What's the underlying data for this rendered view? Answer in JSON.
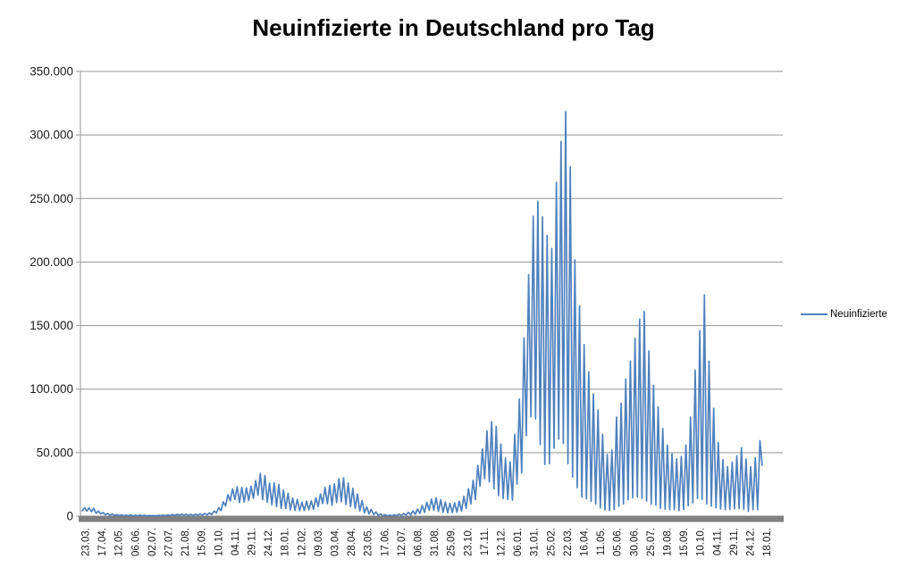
{
  "title": "Neuinfizierte in Deutschland pro Tag",
  "legend": {
    "label": "Neuinfizierte",
    "color": "#4F81BD"
  },
  "chart_data": {
    "type": "line",
    "title": "Neuinfizierte in Deutschland pro Tag",
    "series_name": "Neuinfizierte",
    "xlabel": "",
    "ylabel": "",
    "ylim": [
      0,
      350000
    ],
    "grid": "horizontal",
    "legend_position": "right",
    "colors": {
      "line": "#4F81BD",
      "gridline": "#959595",
      "axis_bar": "#808080",
      "tick_text": "#1a1a1a"
    },
    "y_ticks": [
      {
        "value": 0,
        "label": "0"
      },
      {
        "value": 50000,
        "label": "50.000"
      },
      {
        "value": 100000,
        "label": "100.000"
      },
      {
        "value": 150000,
        "label": "150.000"
      },
      {
        "value": 200000,
        "label": "200.000"
      },
      {
        "value": 250000,
        "label": "250.000"
      },
      {
        "value": 300000,
        "label": "300.000"
      },
      {
        "value": 350000,
        "label": "350.000"
      }
    ],
    "x_tick_labels": [
      "23.03.",
      "17.04.",
      "12.05.",
      "06.06.",
      "02.07.",
      "27.07.",
      "21.08.",
      "15.09.",
      "10.10.",
      "04.11.",
      "29.11.",
      "24.12.",
      "18.01.",
      "12.02.",
      "09.03.",
      "03.04.",
      "28.04.",
      "23.05.",
      "17.06.",
      "12.07.",
      "06.08.",
      "31.08.",
      "25.09.",
      "23.10.",
      "17.11.",
      "12.12.",
      "06.01.",
      "31.01.",
      "25.02.",
      "22.03.",
      "16.04.",
      "11.05.",
      "05.06.",
      "30.06.",
      "25.07.",
      "19.08.",
      "15.09.",
      "10.10.",
      "04.11.",
      "29.11.",
      "24.12.",
      "18.01."
    ],
    "x_start_date": "23.03.2020",
    "x_end_date": "18.01.2023",
    "sampling": "two points per week (weekly reporting low, weekly reporting high), daily new-infection series approximated",
    "weekly_low_high": [
      [
        4200,
        6700
      ],
      [
        4000,
        6500
      ],
      [
        3500,
        6200
      ],
      [
        2200,
        4100
      ],
      [
        1700,
        2900
      ],
      [
        1100,
        2100
      ],
      [
        700,
        1600
      ],
      [
        500,
        1200
      ],
      [
        400,
        1000
      ],
      [
        350,
        800
      ],
      [
        300,
        900
      ],
      [
        250,
        700
      ],
      [
        300,
        800
      ],
      [
        300,
        700
      ],
      [
        250,
        550
      ],
      [
        250,
        500
      ],
      [
        300,
        600
      ],
      [
        350,
        800
      ],
      [
        400,
        1000
      ],
      [
        500,
        1250
      ],
      [
        500,
        1450
      ],
      [
        600,
        1700
      ],
      [
        500,
        1550
      ],
      [
        500,
        1400
      ],
      [
        500,
        1600
      ],
      [
        600,
        1900
      ],
      [
        700,
        2200
      ],
      [
        900,
        2700
      ],
      [
        1200,
        4100
      ],
      [
        2500,
        6700
      ],
      [
        4300,
        11300
      ],
      [
        8000,
        16900
      ],
      [
        12000,
        21500
      ],
      [
        13000,
        23000
      ],
      [
        10800,
        22600
      ],
      [
        11200,
        22300
      ],
      [
        12300,
        23500
      ],
      [
        14000,
        28000
      ],
      [
        16400,
        33700
      ],
      [
        13000,
        32000
      ],
      [
        11000,
        26000
      ],
      [
        9000,
        26400
      ],
      [
        7500,
        25000
      ],
      [
        6200,
        20600
      ],
      [
        6000,
        18000
      ],
      [
        5000,
        14200
      ],
      [
        4500,
        13200
      ],
      [
        4400,
        11000
      ],
      [
        4400,
        11900
      ],
      [
        5000,
        12000
      ],
      [
        5300,
        14400
      ],
      [
        7500,
        17500
      ],
      [
        9900,
        22700
      ],
      [
        9700,
        24300
      ],
      [
        8500,
        25500
      ],
      [
        10800,
        29400
      ],
      [
        11400,
        30100
      ],
      [
        9200,
        26000
      ],
      [
        7500,
        21900
      ],
      [
        6100,
        17400
      ],
      [
        4200,
        12300
      ],
      [
        2700,
        7400
      ],
      [
        1800,
        5400
      ],
      [
        1200,
        3300
      ],
      [
        600,
        1800
      ],
      [
        350,
        1100
      ],
      [
        250,
        800
      ],
      [
        300,
        1000
      ],
      [
        350,
        1550
      ],
      [
        500,
        2200
      ],
      [
        800,
        3100
      ],
      [
        1000,
        4100
      ],
      [
        1500,
        5600
      ],
      [
        2100,
        8400
      ],
      [
        3000,
        10800
      ],
      [
        4700,
        13500
      ],
      [
        4800,
        14500
      ],
      [
        3700,
        13000
      ],
      [
        3000,
        11100
      ],
      [
        2700,
        10100
      ],
      [
        2800,
        10500
      ],
      [
        3100,
        11700
      ],
      [
        4000,
        15600
      ],
      [
        6200,
        21600
      ],
      [
        9600,
        28200
      ],
      [
        13000,
        39900
      ],
      [
        23600,
        53000
      ],
      [
        29400,
        67100
      ],
      [
        27000,
        74300
      ],
      [
        21700,
        70600
      ],
      [
        16100,
        56700
      ],
      [
        13900,
        45700
      ],
      [
        13000,
        42800
      ],
      [
        12500,
        64400
      ],
      [
        25200,
        92200
      ],
      [
        34100,
        140200
      ],
      [
        63400,
        190100
      ],
      [
        78300,
        236100
      ],
      [
        76500,
        247900
      ],
      [
        56300,
        235600
      ],
      [
        40800,
        221000
      ],
      [
        41300,
        210700
      ],
      [
        53500,
        262800
      ],
      [
        60600,
        294900
      ],
      [
        57400,
        318400
      ],
      [
        41300,
        274900
      ],
      [
        30800,
        201700
      ],
      [
        22500,
        165400
      ],
      [
        15000,
        135000
      ],
      [
        13600,
        113500
      ],
      [
        11700,
        96200
      ],
      [
        9400,
        83600
      ],
      [
        6500,
        64400
      ],
      [
        4900,
        48500
      ],
      [
        4500,
        52000
      ],
      [
        5200,
        78000
      ],
      [
        7700,
        89000
      ],
      [
        9600,
        108000
      ],
      [
        12800,
        122000
      ],
      [
        14400,
        140000
      ],
      [
        15400,
        155000
      ],
      [
        14000,
        161200
      ],
      [
        12000,
        130000
      ],
      [
        9500,
        103000
      ],
      [
        8800,
        86000
      ],
      [
        6300,
        69000
      ],
      [
        5500,
        56000
      ],
      [
        5200,
        49000
      ],
      [
        5100,
        45000
      ],
      [
        4300,
        47000
      ],
      [
        5300,
        56000
      ],
      [
        8200,
        78000
      ],
      [
        10400,
        115000
      ],
      [
        14000,
        146000
      ],
      [
        13300,
        174100
      ],
      [
        9500,
        122000
      ],
      [
        7900,
        85000
      ],
      [
        6600,
        58000
      ],
      [
        5600,
        44500
      ],
      [
        5100,
        39000
      ],
      [
        5400,
        42500
      ],
      [
        5800,
        47500
      ],
      [
        6000,
        54000
      ],
      [
        5300,
        45000
      ],
      [
        3800,
        39000
      ],
      [
        5200,
        46000
      ],
      [
        5100,
        59500
      ]
    ],
    "final_value": 40000,
    "max_value": 318400,
    "max_value_date_near": "22.03."
  }
}
